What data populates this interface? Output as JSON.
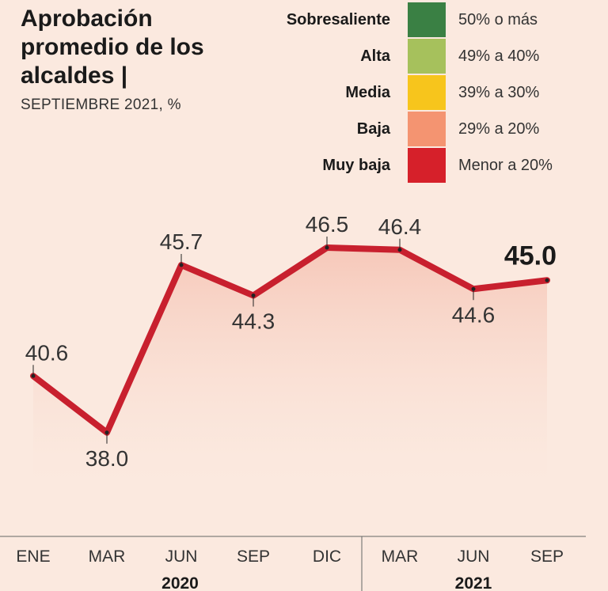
{
  "header": {
    "title": "Aprobación promedio de los alcaldes |",
    "subtitle": "SEPTIEMBRE 2021, %"
  },
  "legend": {
    "items": [
      {
        "label": "Sobresaliente",
        "range": "50% o más",
        "color": "#3a8044"
      },
      {
        "label": "Alta",
        "range": "49% a 40%",
        "color": "#a6c15c"
      },
      {
        "label": "Media",
        "range": "39% a 30%",
        "color": "#f7c51c"
      },
      {
        "label": "Baja",
        "range": "29% a 20%",
        "color": "#f49471"
      },
      {
        "label": "Muy baja",
        "range": "Menor a 20%",
        "color": "#d6202a"
      }
    ]
  },
  "colors": {
    "background": "#fbe9df",
    "line": "#c8202e",
    "area_top": "#f6c6b7"
  },
  "chart_data": {
    "type": "line",
    "title": "Aprobación promedio de los alcaldes",
    "subtitle": "SEPTIEMBRE 2021, %",
    "categories": [
      "ENE",
      "MAR",
      "JUN",
      "SEP",
      "DIC",
      "MAR",
      "JUN",
      "SEP"
    ],
    "values": [
      40.6,
      38.0,
      45.7,
      44.3,
      46.5,
      46.4,
      44.6,
      45.0
    ],
    "value_labels": [
      "40.6",
      "38.0",
      "45.7",
      "44.3",
      "46.5",
      "46.4",
      "44.6",
      "45.0"
    ],
    "label_positions": [
      "above",
      "below",
      "above",
      "below",
      "above",
      "above",
      "below",
      "above"
    ],
    "highlight_last": true,
    "year_groups": [
      {
        "label": "2020",
        "span": [
          0,
          4
        ]
      },
      {
        "label": "2021",
        "span": [
          5,
          7
        ]
      }
    ],
    "ylim": [
      30,
      50
    ],
    "xlabel": "",
    "ylabel": "%"
  }
}
